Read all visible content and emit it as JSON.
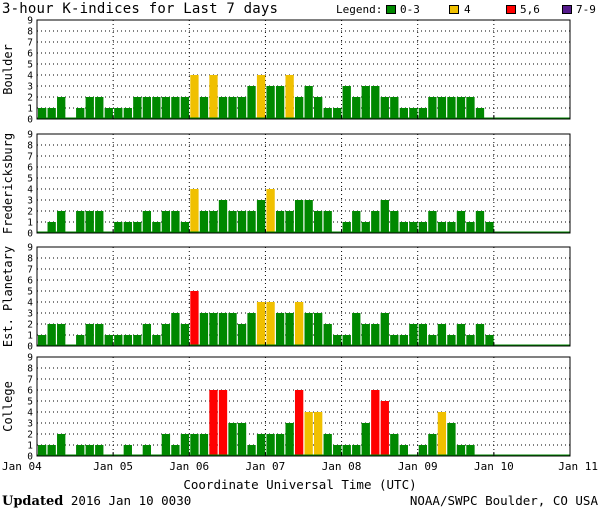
{
  "title": "3-hour K-indices for Last 7 days",
  "legend": {
    "label": "Legend:",
    "items": [
      {
        "label": "0-3",
        "color": "#008800"
      },
      {
        "label": "4",
        "color": "#f0c000"
      },
      {
        "label": "5,6",
        "color": "#ff0000"
      },
      {
        "label": "7-9",
        "color": "#551a8b"
      }
    ]
  },
  "footer": {
    "updated_label": "Updated",
    "updated_value": "2016 Jan 10 0030",
    "credit": "NOAA/SWPC Boulder, CO USA"
  },
  "chart_data": {
    "type": "bar",
    "xlabel": "Coordinate Universal Time (UTC)",
    "x_ticks": [
      "Jan 04",
      "Jan 05",
      "Jan 06",
      "Jan 07",
      "Jan 08",
      "Jan 09",
      "Jan 10",
      "Jan 11"
    ],
    "ylim": [
      0,
      9
    ],
    "y_ticks": [
      0,
      1,
      2,
      3,
      4,
      5,
      6,
      7,
      8,
      9
    ],
    "grid": true,
    "series": [
      {
        "name": "Boulder",
        "values": [
          1,
          1,
          2,
          0,
          1,
          2,
          2,
          1,
          1,
          1,
          2,
          2,
          2,
          2,
          2,
          2,
          4,
          2,
          4,
          2,
          2,
          2,
          3,
          4,
          3,
          3,
          4,
          2,
          3,
          2,
          1,
          1,
          3,
          2,
          3,
          3,
          2,
          2,
          1,
          1,
          1,
          2,
          2,
          2,
          2,
          2,
          1,
          0,
          0,
          0,
          0,
          0,
          0,
          0,
          0,
          0
        ]
      },
      {
        "name": "Fredericksburg",
        "values": [
          0,
          1,
          2,
          0,
          2,
          2,
          2,
          0,
          1,
          1,
          1,
          2,
          1,
          2,
          2,
          1,
          4,
          2,
          2,
          3,
          2,
          2,
          2,
          3,
          4,
          2,
          2,
          3,
          3,
          2,
          2,
          0,
          1,
          2,
          1,
          2,
          3,
          2,
          1,
          1,
          1,
          2,
          1,
          1,
          2,
          1,
          2,
          1,
          0,
          0,
          0,
          0,
          0,
          0,
          0,
          0
        ]
      },
      {
        "name": "Est. Planetary",
        "values": [
          1,
          2,
          2,
          0,
          1,
          2,
          2,
          1,
          1,
          1,
          1,
          2,
          1,
          2,
          3,
          2,
          5,
          3,
          3,
          3,
          3,
          2,
          3,
          4,
          4,
          3,
          3,
          4,
          3,
          3,
          2,
          1,
          1,
          3,
          2,
          2,
          3,
          1,
          1,
          2,
          2,
          1,
          2,
          1,
          2,
          1,
          2,
          1,
          0,
          0,
          0,
          0,
          0,
          0,
          0,
          0
        ]
      },
      {
        "name": "College",
        "values": [
          1,
          1,
          2,
          0,
          1,
          1,
          1,
          0,
          0,
          1,
          0,
          1,
          0,
          2,
          1,
          2,
          2,
          2,
          6,
          6,
          3,
          3,
          1,
          2,
          2,
          2,
          3,
          6,
          4,
          4,
          2,
          1,
          1,
          1,
          3,
          6,
          5,
          2,
          1,
          0,
          1,
          2,
          4,
          3,
          1,
          1,
          0,
          0,
          0,
          0,
          0,
          0,
          0,
          0,
          0,
          0
        ]
      }
    ]
  }
}
